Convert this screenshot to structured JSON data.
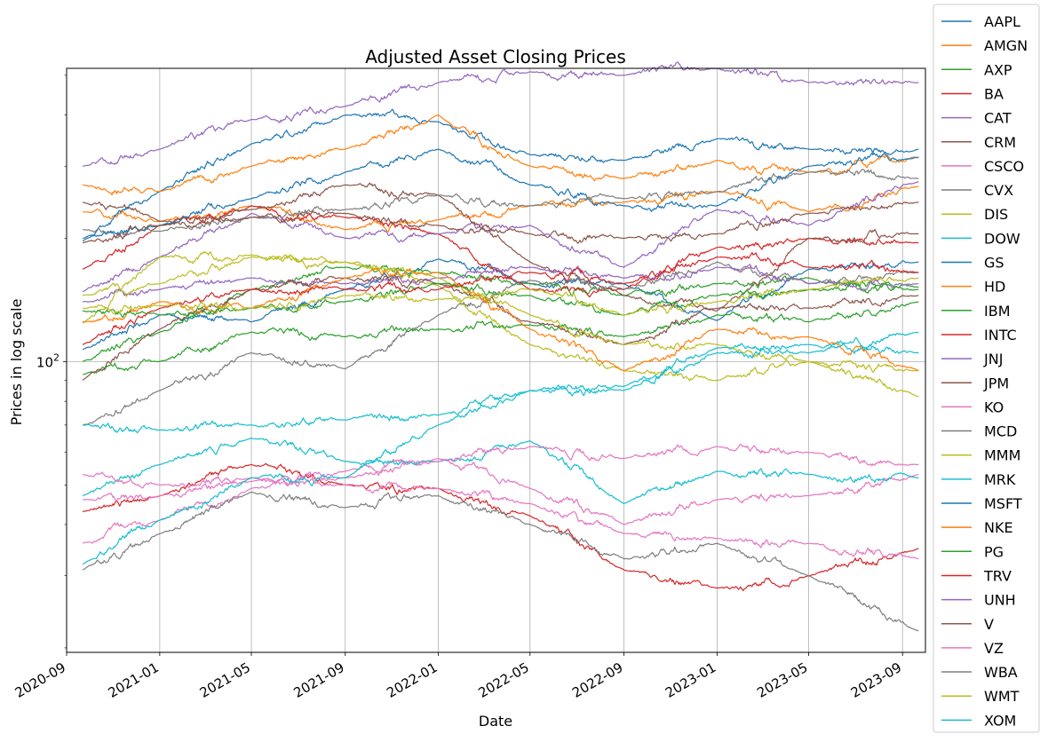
{
  "chart_data": {
    "type": "line",
    "title": "Adjusted Asset Closing Prices",
    "xlabel": "Date",
    "ylabel": "Prices in log scale",
    "y_scale": "log",
    "ylim": [
      19.5,
      520
    ],
    "xlim": [
      "2020-09-01",
      "2023-10-01"
    ],
    "grid": true,
    "legend_position": "right, outside",
    "x_ticks": [
      "2020-09",
      "2021-01",
      "2021-05",
      "2021-09",
      "2022-01",
      "2022-05",
      "2022-09",
      "2023-01",
      "2023-05",
      "2023-09"
    ],
    "y_ticks": [
      {
        "value": 100,
        "base": "10",
        "exp": "2"
      }
    ],
    "series": [
      {
        "name": "AAPL",
        "color": "#1f77b4",
        "x": [
          "2020-09-22",
          "2021-01-01",
          "2021-05-01",
          "2021-09-01",
          "2022-01-01",
          "2022-05-01",
          "2022-09-01",
          "2023-01-01",
          "2023-05-01",
          "2023-09-22"
        ],
        "values": [
          107,
          130,
          125,
          150,
          178,
          155,
          155,
          126,
          168,
          175
        ]
      },
      {
        "name": "AMGN",
        "color": "#ff7f0e",
        "x": [
          "2020-09-22",
          "2021-01-01",
          "2021-05-01",
          "2021-09-01",
          "2022-01-01",
          "2022-05-01",
          "2022-09-01",
          "2023-01-01",
          "2023-05-01",
          "2023-09-22"
        ],
        "values": [
          232,
          220,
          240,
          210,
          222,
          240,
          245,
          260,
          232,
          268
        ]
      },
      {
        "name": "AXP",
        "color": "#2ca02c",
        "x": [
          "2020-09-22",
          "2021-01-01",
          "2021-05-01",
          "2021-09-01",
          "2022-01-01",
          "2022-05-01",
          "2022-09-01",
          "2023-01-01",
          "2023-05-01",
          "2023-09-22"
        ],
        "values": [
          100,
          118,
          150,
          170,
          165,
          155,
          145,
          155,
          160,
          152
        ]
      },
      {
        "name": "BA",
        "color": "#d62728",
        "x": [
          "2020-09-22",
          "2021-01-01",
          "2021-05-01",
          "2021-09-01",
          "2022-01-01",
          "2022-05-01",
          "2022-09-01",
          "2023-01-01",
          "2023-05-01",
          "2023-09-22"
        ],
        "values": [
          168,
          215,
          240,
          225,
          205,
          150,
          150,
          190,
          200,
          195
        ]
      },
      {
        "name": "CAT",
        "color": "#9467bd",
        "x": [
          "2020-09-22",
          "2021-01-01",
          "2021-05-01",
          "2021-09-01",
          "2022-01-01",
          "2022-05-01",
          "2022-09-01",
          "2023-01-01",
          "2023-05-01",
          "2023-09-22"
        ],
        "values": [
          148,
          180,
          230,
          200,
          205,
          215,
          170,
          235,
          215,
          275
        ]
      },
      {
        "name": "CRM",
        "color": "#8c564b",
        "x": [
          "2020-09-22",
          "2021-01-01",
          "2021-05-01",
          "2021-09-01",
          "2022-01-01",
          "2022-05-01",
          "2022-09-01",
          "2023-01-01",
          "2023-05-01",
          "2023-09-22"
        ],
        "values": [
          245,
          220,
          235,
          270,
          255,
          175,
          145,
          133,
          200,
          205
        ]
      },
      {
        "name": "CSCO",
        "color": "#e377c2",
        "x": [
          "2020-09-22",
          "2021-01-01",
          "2021-05-01",
          "2021-09-01",
          "2022-01-01",
          "2022-05-01",
          "2022-09-01",
          "2023-01-01",
          "2023-05-01",
          "2023-09-22"
        ],
        "values": [
          36,
          41,
          49,
          54,
          58,
          49,
          40,
          46,
          47,
          53
        ]
      },
      {
        "name": "CVX",
        "color": "#7f7f7f",
        "x": [
          "2020-09-22",
          "2021-01-01",
          "2021-05-01",
          "2021-09-01",
          "2022-01-01",
          "2022-05-01",
          "2022-09-01",
          "2023-01-01",
          "2023-05-01",
          "2023-09-22"
        ],
        "values": [
          70,
          85,
          105,
          96,
          130,
          158,
          150,
          175,
          155,
          165
        ]
      },
      {
        "name": "DIS",
        "color": "#bcbd22",
        "x": [
          "2020-09-22",
          "2021-01-01",
          "2021-05-01",
          "2021-09-01",
          "2022-01-01",
          "2022-05-01",
          "2022-09-01",
          "2023-01-01",
          "2023-05-01",
          "2023-09-22"
        ],
        "values": [
          124,
          180,
          182,
          175,
          153,
          110,
          95,
          90,
          100,
          82
        ]
      },
      {
        "name": "DOW",
        "color": "#17becf",
        "x": [
          "2020-09-22",
          "2021-01-01",
          "2021-05-01",
          "2021-09-01",
          "2022-01-01",
          "2022-05-01",
          "2022-09-01",
          "2023-01-01",
          "2023-05-01",
          "2023-09-22"
        ],
        "values": [
          47,
          56,
          65,
          57,
          57,
          64,
          45,
          54,
          53,
          52
        ]
      },
      {
        "name": "GS",
        "color": "#1f77b4",
        "x": [
          "2020-09-22",
          "2021-01-01",
          "2021-05-01",
          "2021-09-01",
          "2022-01-01",
          "2022-05-01",
          "2022-09-01",
          "2023-01-01",
          "2023-05-01",
          "2023-09-22"
        ],
        "values": [
          197,
          260,
          340,
          400,
          385,
          320,
          310,
          350,
          330,
          330
        ]
      },
      {
        "name": "HD",
        "color": "#ff7f0e",
        "x": [
          "2020-09-22",
          "2021-01-01",
          "2021-05-01",
          "2021-09-01",
          "2022-01-01",
          "2022-05-01",
          "2022-09-01",
          "2023-01-01",
          "2023-05-01",
          "2023-09-22"
        ],
        "values": [
          270,
          260,
          300,
          330,
          400,
          300,
          280,
          310,
          290,
          315
        ]
      },
      {
        "name": "IBM",
        "color": "#2ca02c",
        "x": [
          "2020-09-22",
          "2021-01-01",
          "2021-05-01",
          "2021-09-01",
          "2022-01-01",
          "2022-05-01",
          "2022-09-01",
          "2023-01-01",
          "2023-05-01",
          "2023-09-22"
        ],
        "values": [
          93,
          100,
          118,
          115,
          120,
          123,
          115,
          130,
          125,
          140
        ]
      },
      {
        "name": "INTC",
        "color": "#d62728",
        "x": [
          "2020-09-22",
          "2021-01-01",
          "2021-05-01",
          "2021-09-01",
          "2022-01-01",
          "2022-05-01",
          "2022-09-01",
          "2023-01-01",
          "2023-05-01",
          "2023-09-22"
        ],
        "values": [
          43,
          47,
          56,
          50,
          49,
          42,
          31,
          28,
          30,
          35
        ]
      },
      {
        "name": "JNJ",
        "color": "#9467bd",
        "x": [
          "2020-09-22",
          "2021-01-01",
          "2021-05-01",
          "2021-09-01",
          "2022-01-01",
          "2022-05-01",
          "2022-09-01",
          "2023-01-01",
          "2023-05-01",
          "2023-09-22"
        ],
        "values": [
          140,
          150,
          160,
          155,
          160,
          170,
          160,
          170,
          155,
          155
        ]
      },
      {
        "name": "JPM",
        "color": "#8c564b",
        "x": [
          "2020-09-22",
          "2021-01-01",
          "2021-05-01",
          "2021-09-01",
          "2022-01-01",
          "2022-05-01",
          "2022-09-01",
          "2023-01-01",
          "2023-05-01",
          "2023-09-22"
        ],
        "values": [
          90,
          120,
          150,
          160,
          155,
          125,
          110,
          135,
          135,
          145
        ]
      },
      {
        "name": "KO",
        "color": "#e377c2",
        "x": [
          "2020-09-22",
          "2021-01-01",
          "2021-05-01",
          "2021-09-01",
          "2022-01-01",
          "2022-05-01",
          "2022-09-01",
          "2023-01-01",
          "2023-05-01",
          "2023-09-22"
        ],
        "values": [
          46,
          47,
          51,
          52,
          57,
          62,
          58,
          62,
          60,
          56
        ]
      },
      {
        "name": "MCD",
        "color": "#7f7f7f",
        "x": [
          "2020-09-22",
          "2021-01-01",
          "2021-05-01",
          "2021-09-01",
          "2022-01-01",
          "2022-05-01",
          "2022-09-01",
          "2023-01-01",
          "2023-05-01",
          "2023-09-22"
        ],
        "values": [
          210,
          208,
          225,
          235,
          255,
          240,
          250,
          260,
          290,
          280
        ]
      },
      {
        "name": "MMM",
        "color": "#bcbd22",
        "x": [
          "2020-09-22",
          "2021-01-01",
          "2021-05-01",
          "2021-09-01",
          "2022-01-01",
          "2022-05-01",
          "2022-09-01",
          "2023-01-01",
          "2023-05-01",
          "2023-09-22"
        ],
        "values": [
          145,
          155,
          180,
          175,
          160,
          130,
          110,
          110,
          100,
          95
        ]
      },
      {
        "name": "MRK",
        "color": "#17becf",
        "x": [
          "2020-09-22",
          "2021-01-01",
          "2021-05-01",
          "2021-09-01",
          "2022-01-01",
          "2022-05-01",
          "2022-09-01",
          "2023-01-01",
          "2023-05-01",
          "2023-09-22"
        ],
        "values": [
          70,
          68,
          70,
          72,
          74,
          85,
          85,
          108,
          110,
          105
        ]
      },
      {
        "name": "MSFT",
        "color": "#1f77b4",
        "x": [
          "2020-09-22",
          "2021-01-01",
          "2021-05-01",
          "2021-09-01",
          "2022-01-01",
          "2022-05-01",
          "2022-09-01",
          "2023-01-01",
          "2023-05-01",
          "2023-09-22"
        ],
        "values": [
          200,
          215,
          250,
          290,
          330,
          270,
          240,
          240,
          300,
          315
        ]
      },
      {
        "name": "NKE",
        "color": "#ff7f0e",
        "x": [
          "2020-09-22",
          "2021-01-01",
          "2021-05-01",
          "2021-09-01",
          "2022-01-01",
          "2022-05-01",
          "2022-09-01",
          "2023-01-01",
          "2023-05-01",
          "2023-09-22"
        ],
        "values": [
          125,
          140,
          135,
          160,
          165,
          120,
          95,
          120,
          115,
          95
        ]
      },
      {
        "name": "PG",
        "color": "#2ca02c",
        "x": [
          "2020-09-22",
          "2021-01-01",
          "2021-05-01",
          "2021-09-01",
          "2022-01-01",
          "2022-05-01",
          "2022-09-01",
          "2023-01-01",
          "2023-05-01",
          "2023-09-22"
        ],
        "values": [
          133,
          130,
          135,
          140,
          155,
          145,
          130,
          145,
          150,
          150
        ]
      },
      {
        "name": "TRV",
        "color": "#d62728",
        "x": [
          "2020-09-22",
          "2021-01-01",
          "2021-05-01",
          "2021-09-01",
          "2022-01-01",
          "2022-05-01",
          "2022-09-01",
          "2023-01-01",
          "2023-05-01",
          "2023-09-22"
        ],
        "values": [
          110,
          135,
          150,
          150,
          150,
          165,
          155,
          180,
          170,
          165
        ]
      },
      {
        "name": "UNH",
        "color": "#9467bd",
        "x": [
          "2020-09-22",
          "2021-01-01",
          "2021-05-01",
          "2021-09-01",
          "2022-01-01",
          "2022-05-01",
          "2022-09-01",
          "2023-01-01",
          "2023-05-01",
          "2023-09-22"
        ],
        "values": [
          300,
          330,
          390,
          420,
          480,
          510,
          500,
          520,
          480,
          480
        ]
      },
      {
        "name": "V",
        "color": "#8c564b",
        "x": [
          "2020-09-22",
          "2021-01-01",
          "2021-05-01",
          "2021-09-01",
          "2022-01-01",
          "2022-05-01",
          "2022-09-01",
          "2023-01-01",
          "2023-05-01",
          "2023-09-22"
        ],
        "values": [
          195,
          215,
          225,
          230,
          215,
          205,
          200,
          205,
          230,
          245
        ]
      },
      {
        "name": "VZ",
        "color": "#e377c2",
        "x": [
          "2020-09-22",
          "2021-01-01",
          "2021-05-01",
          "2021-09-01",
          "2022-01-01",
          "2022-05-01",
          "2022-09-01",
          "2023-01-01",
          "2023-05-01",
          "2023-09-22"
        ],
        "values": [
          53,
          50,
          52,
          50,
          49,
          45,
          38,
          37,
          36,
          33
        ]
      },
      {
        "name": "WBA",
        "color": "#7f7f7f",
        "x": [
          "2020-09-22",
          "2021-01-01",
          "2021-05-01",
          "2021-09-01",
          "2022-01-01",
          "2022-05-01",
          "2022-09-01",
          "2023-01-01",
          "2023-05-01",
          "2023-09-22"
        ],
        "values": [
          31,
          38,
          48,
          44,
          47,
          40,
          33,
          36,
          30,
          22
        ]
      },
      {
        "name": "WMT",
        "color": "#bcbd22",
        "x": [
          "2020-09-22",
          "2021-01-01",
          "2021-05-01",
          "2021-09-01",
          "2022-01-01",
          "2022-05-01",
          "2022-09-01",
          "2023-01-01",
          "2023-05-01",
          "2023-09-22"
        ],
        "values": [
          135,
          137,
          135,
          145,
          142,
          150,
          130,
          140,
          150,
          160
        ]
      },
      {
        "name": "XOM",
        "color": "#17becf",
        "x": [
          "2020-09-22",
          "2021-01-01",
          "2021-05-01",
          "2021-09-01",
          "2022-01-01",
          "2022-05-01",
          "2022-09-01",
          "2023-01-01",
          "2023-05-01",
          "2023-09-22"
        ],
        "values": [
          32,
          41,
          52,
          52,
          70,
          85,
          87,
          105,
          105,
          118
        ]
      }
    ]
  }
}
